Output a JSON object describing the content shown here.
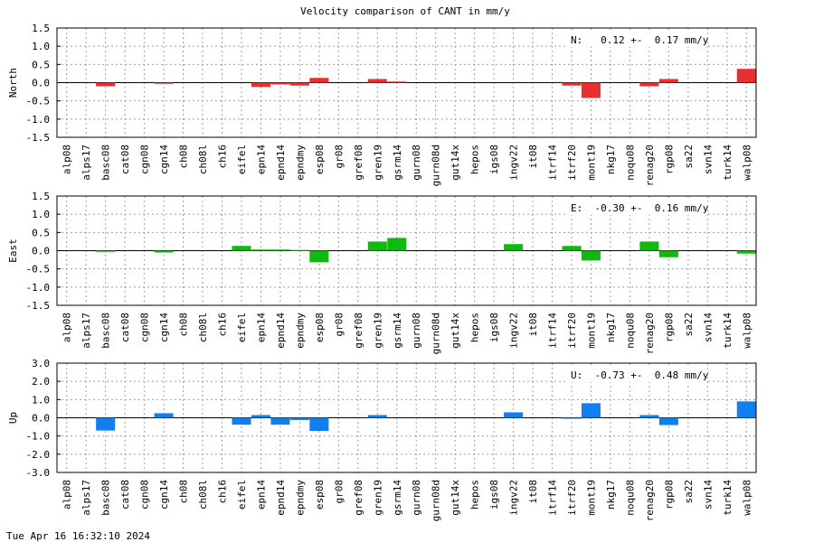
{
  "title": "Velocity comparison of CANT in mm/y",
  "footer": "Tue Apr 16 16:32:10 2024",
  "chart_data": [
    {
      "type": "bar",
      "title": "Velocity comparison of CANT in mm/y",
      "ylabel": "North",
      "ylim": [
        -1.5,
        1.5
      ],
      "yticks": [
        "1.5",
        "1.0",
        "0.5",
        "0.0",
        "-0.5",
        "-1.0",
        "-1.5"
      ],
      "grid": true,
      "annotation": "N:   0.12 +-  0.17 mm/y",
      "color": "#e83030",
      "categories": [
        "alp08",
        "alps17",
        "basc08",
        "cat08",
        "cgn08",
        "cgn14",
        "ch08",
        "ch08l",
        "ch16",
        "eifel",
        "epn14",
        "epnd14",
        "epndmy",
        "esp08",
        "gr08",
        "gref08",
        "gren19",
        "gsrm14",
        "gurn08",
        "gurn08d",
        "gut14x",
        "hepos",
        "igs08",
        "ingv22",
        "it08",
        "itrf14",
        "itrf20",
        "mont19",
        "nkg17",
        "noqu08",
        "renag20",
        "rgp08",
        "sa22",
        "svn14",
        "turk14",
        "walp08"
      ],
      "values": [
        0,
        0,
        -0.1,
        0,
        0,
        -0.03,
        0,
        0,
        0,
        0,
        -0.12,
        -0.05,
        -0.08,
        0.13,
        0,
        0,
        0.1,
        0.03,
        0,
        0,
        0,
        0,
        0,
        0,
        0,
        0,
        -0.08,
        -0.42,
        0,
        0,
        -0.1,
        0.1,
        0,
        0,
        0,
        0.38
      ]
    },
    {
      "type": "bar",
      "ylabel": "East",
      "ylim": [
        -1.5,
        1.5
      ],
      "yticks": [
        "1.5",
        "1.0",
        "0.5",
        "0.0",
        "-0.5",
        "-1.0",
        "-1.5"
      ],
      "grid": true,
      "annotation": "E:  -0.30 +-  0.16 mm/y",
      "color": "#10b810",
      "categories": [
        "alp08",
        "alps17",
        "basc08",
        "cat08",
        "cgn08",
        "cgn14",
        "ch08",
        "ch08l",
        "ch16",
        "eifel",
        "epn14",
        "epnd14",
        "epndmy",
        "esp08",
        "gr08",
        "gref08",
        "gren19",
        "gsrm14",
        "gurn08",
        "gurn08d",
        "gut14x",
        "hepos",
        "igs08",
        "ingv22",
        "it08",
        "itrf14",
        "itrf20",
        "mont19",
        "nkg17",
        "noqu08",
        "renag20",
        "rgp08",
        "sa22",
        "svn14",
        "turk14",
        "walp08"
      ],
      "values": [
        0,
        0,
        -0.03,
        0,
        0,
        -0.05,
        0,
        0,
        0,
        0.13,
        0.03,
        0.03,
        0.02,
        -0.32,
        0,
        0,
        0.25,
        0.35,
        0,
        0,
        0,
        0,
        0,
        0.18,
        0,
        0,
        0.13,
        -0.27,
        0,
        0,
        0.25,
        -0.18,
        0,
        0,
        0,
        -0.08
      ]
    },
    {
      "type": "bar",
      "ylabel": "Up",
      "ylim": [
        -3.0,
        3.0
      ],
      "yticks": [
        "3.0",
        "2.0",
        "1.0",
        "0.0",
        "-1.0",
        "-2.0",
        "-3.0"
      ],
      "grid": true,
      "annotation": "U:  -0.73 +-  0.48 mm/y",
      "color": "#1080f0",
      "categories": [
        "alp08",
        "alps17",
        "basc08",
        "cat08",
        "cgn08",
        "cgn14",
        "ch08",
        "ch08l",
        "ch16",
        "eifel",
        "epn14",
        "epnd14",
        "epndmy",
        "esp08",
        "gr08",
        "gref08",
        "gren19",
        "gsrm14",
        "gurn08",
        "gurn08d",
        "gut14x",
        "hepos",
        "igs08",
        "ingv22",
        "it08",
        "itrf14",
        "itrf20",
        "mont19",
        "nkg17",
        "noqu08",
        "renag20",
        "rgp08",
        "sa22",
        "svn14",
        "turk14",
        "walp08"
      ],
      "values": [
        0,
        0,
        -0.7,
        0,
        0,
        0.25,
        0,
        0,
        0,
        -0.38,
        0.15,
        -0.38,
        -0.12,
        -0.72,
        0,
        0,
        0.15,
        0,
        0,
        0,
        0,
        0,
        0,
        0.3,
        0,
        0,
        -0.05,
        0.8,
        0,
        0,
        0.15,
        -0.4,
        0,
        0,
        0,
        0.9
      ]
    }
  ]
}
